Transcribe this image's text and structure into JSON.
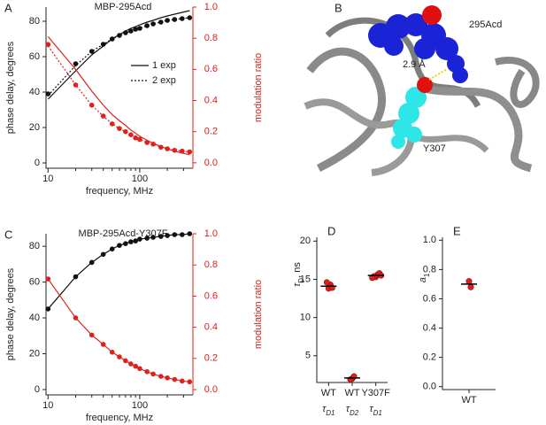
{
  "chart_data": [
    {
      "type": "line",
      "panel_label": "A",
      "title": "MBP-295Acd",
      "xlabel": "frequency, MHz",
      "ylabel": "phase delay, degrees",
      "y2label": "modulation ratio",
      "xlog": true,
      "xlim": [
        9.5,
        380
      ],
      "xticks": [
        10,
        100
      ],
      "xminorticks": [
        20,
        30,
        40,
        50,
        60,
        70,
        80,
        90,
        200,
        300
      ],
      "ylim": [
        -3,
        88
      ],
      "yticks": [
        0,
        20,
        40,
        60,
        80
      ],
      "y2lim": [
        -0.035,
        1.0
      ],
      "y2ticks": [
        {
          "value": 0,
          "label": "0.0"
        },
        {
          "value": 0.2,
          "label": "0.2"
        },
        {
          "value": 0.4,
          "label": "0.4"
        },
        {
          "value": 0.6,
          "label": "0.6"
        },
        {
          "value": 0.8,
          "label": "0.8"
        },
        {
          "value": 1.0,
          "label": "1.0"
        }
      ],
      "x": [
        10,
        20,
        30,
        40,
        50,
        60,
        70,
        80,
        90,
        100,
        120,
        140,
        170,
        200,
        240,
        290,
        350
      ],
      "series": [
        {
          "style": "points",
          "color": "#111111",
          "axis": "y",
          "values": [
            39,
            56,
            63,
            67,
            70,
            72,
            73.5,
            74.5,
            75.5,
            76,
            77.5,
            78.5,
            79.5,
            80.5,
            81,
            81.5,
            82
          ]
        },
        {
          "style": "solid",
          "color": "#111111",
          "axis": "y",
          "values": [
            36,
            52,
            61,
            66,
            70,
            72.5,
            74.5,
            76,
            77,
            78,
            79.5,
            80.5,
            82,
            83,
            84,
            85,
            86
          ]
        },
        {
          "style": "dotted",
          "color": "#111111",
          "axis": "y",
          "values": [
            38,
            55,
            63,
            67,
            70,
            72,
            73.5,
            74.5,
            75.5,
            76,
            77.5,
            78.5,
            79.5,
            80.5,
            81,
            81.5,
            82
          ]
        },
        {
          "style": "points",
          "color": "#e0201b",
          "axis": "y2",
          "values": [
            0.76,
            0.5,
            0.37,
            0.3,
            0.25,
            0.22,
            0.2,
            0.18,
            0.16,
            0.15,
            0.13,
            0.12,
            0.1,
            0.09,
            0.08,
            0.075,
            0.07
          ]
        },
        {
          "style": "solid",
          "color": "#e0201b",
          "axis": "y2",
          "values": [
            0.81,
            0.6,
            0.46,
            0.37,
            0.31,
            0.27,
            0.24,
            0.21,
            0.19,
            0.17,
            0.145,
            0.125,
            0.105,
            0.09,
            0.075,
            0.062,
            0.052
          ]
        },
        {
          "style": "dotted",
          "color": "#e0201b",
          "axis": "y2",
          "values": [
            0.75,
            0.5,
            0.37,
            0.3,
            0.25,
            0.22,
            0.2,
            0.18,
            0.16,
            0.15,
            0.13,
            0.12,
            0.1,
            0.09,
            0.08,
            0.075,
            0.07
          ]
        }
      ],
      "legend": [
        {
          "label": "1 exp",
          "style": "solid"
        },
        {
          "label": "2 exp",
          "style": "dotted"
        }
      ]
    },
    {
      "type": "line",
      "panel_label": "C",
      "title": "MBP-295Acd-Y307F",
      "xlabel": "frequency, MHz",
      "ylabel": "phase delay, degrees",
      "y2label": "modulation ratio",
      "xlog": true,
      "xlim": [
        9.5,
        380
      ],
      "xticks": [
        10,
        100
      ],
      "xminorticks": [
        20,
        30,
        40,
        50,
        60,
        70,
        80,
        90,
        200,
        300
      ],
      "ylim": [
        -3,
        87
      ],
      "yticks": [
        0,
        20,
        40,
        60,
        80
      ],
      "y2lim": [
        -0.034,
        1.0
      ],
      "y2ticks": [
        {
          "value": 0,
          "label": "0.0"
        },
        {
          "value": 0.2,
          "label": "0.2"
        },
        {
          "value": 0.4,
          "label": "0.4"
        },
        {
          "value": 0.6,
          "label": "0.6"
        },
        {
          "value": 0.8,
          "label": "0.8"
        },
        {
          "value": 1.0,
          "label": "1.0"
        }
      ],
      "x": [
        10,
        20,
        30,
        40,
        50,
        60,
        70,
        80,
        90,
        100,
        120,
        140,
        170,
        200,
        240,
        290,
        350
      ],
      "series": [
        {
          "style": "line-points",
          "color": "#111111",
          "axis": "y",
          "values": [
            45,
            63,
            71,
            75.5,
            78.5,
            80.5,
            81.5,
            82.5,
            83,
            84,
            84.5,
            85,
            85.5,
            86,
            86.5,
            86.5,
            87
          ]
        },
        {
          "style": "line-points",
          "color": "#e0201b",
          "axis": "y2",
          "values": [
            0.71,
            0.46,
            0.35,
            0.29,
            0.24,
            0.21,
            0.185,
            0.165,
            0.15,
            0.135,
            0.115,
            0.1,
            0.085,
            0.075,
            0.065,
            0.055,
            0.05
          ]
        }
      ]
    },
    {
      "type": "strip",
      "panel_label": "D",
      "ylabel": [
        "τ",
        "D",
        ", ns"
      ],
      "ylim": [
        1.5,
        20.5
      ],
      "yticks": [
        5,
        10,
        15,
        20
      ],
      "categories": [
        "WT",
        "WT",
        "Y307F"
      ],
      "sublabels": [
        [
          "τ",
          "D1"
        ],
        [
          "τ",
          "D2"
        ],
        [
          "τ",
          "D1"
        ]
      ],
      "color": "#e0201b",
      "points": [
        [
          13.8,
          14.3,
          14.6,
          13.9
        ],
        [
          2.0,
          2.3,
          1.9
        ],
        [
          15.3,
          15.6,
          15.4,
          15.8,
          15.2,
          15.5
        ]
      ],
      "means": [
        14.1,
        2.1,
        15.5
      ]
    },
    {
      "type": "strip",
      "panel_label": "E",
      "ylabel": [
        "a",
        "1"
      ],
      "ylim": [
        -0.02,
        1.02
      ],
      "yticks": [
        {
          "value": 0,
          "label": "0.0"
        },
        {
          "value": 0.2,
          "label": "0.2"
        },
        {
          "value": 0.4,
          "label": "0.4"
        },
        {
          "value": 0.6,
          "label": "0.6"
        },
        {
          "value": 0.8,
          "label": "0.8"
        },
        {
          "value": 1.0,
          "label": "1.0"
        }
      ],
      "categories": [
        "WT"
      ],
      "color": "#e0201b",
      "points": [
        [
          0.72,
          0.68
        ]
      ],
      "means": [
        0.7
      ]
    }
  ],
  "structure_image": {
    "panel_label": "B",
    "labels": [
      "295Acd",
      "2.9 Å",
      "Y307"
    ]
  }
}
